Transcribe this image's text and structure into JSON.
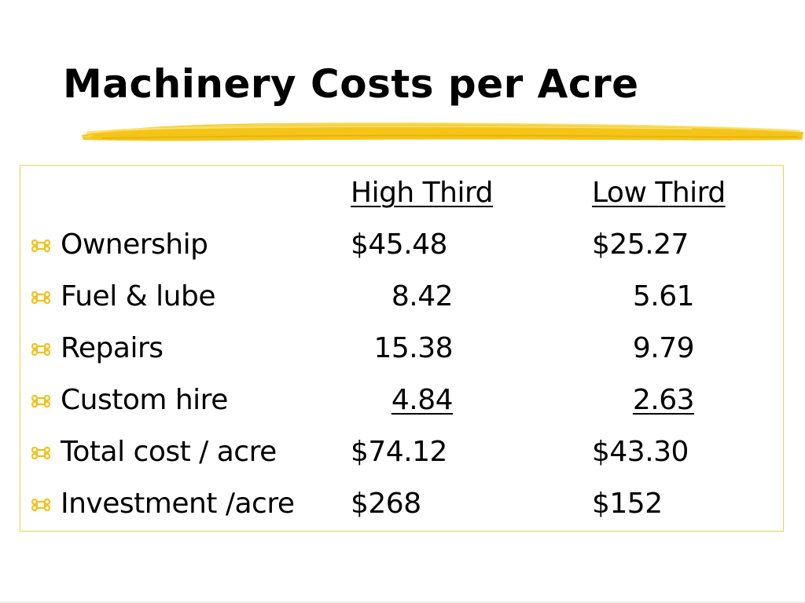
{
  "slide": {
    "title": "Machinery Costs per Acre"
  },
  "colors": {
    "accent_yellow": "#f2c21a",
    "box_border": "#f2d24a",
    "text": "#000000"
  },
  "table": {
    "bullet_icon": "command-key-icon",
    "headers": {
      "high": "High Third",
      "low": "Low Third"
    },
    "rows": [
      {
        "label": "Ownership",
        "high": "$45.48",
        "low": "$25.27"
      },
      {
        "label": "Fuel & lube",
        "high": "8.42",
        "low": "5.61"
      },
      {
        "label": "Repairs",
        "high": "15.38",
        "low": "9.79"
      },
      {
        "label": "Custom hire",
        "high": "4.84",
        "low": "2.63"
      },
      {
        "label": "Total cost / acre",
        "high": "$74.12",
        "low": "$43.30"
      },
      {
        "label": "Investment /acre",
        "high": "$268",
        "low": "$152"
      }
    ]
  }
}
